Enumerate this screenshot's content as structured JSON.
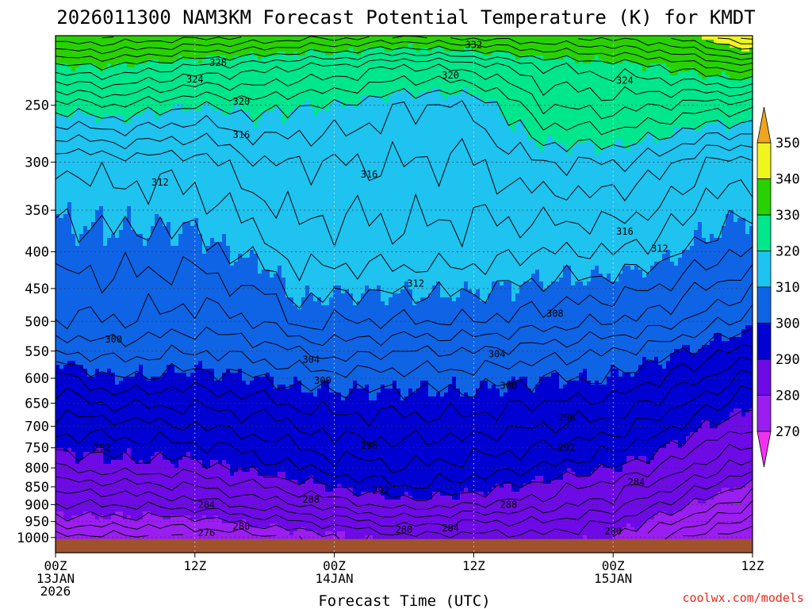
{
  "chart_data": {
    "type": "heatmap",
    "title": "2026011300 NAM3KM Forecast Potential Temperature (K) for KMDT",
    "xlabel": "Forecast Time (UTC)",
    "ylabel": "",
    "credit": "coolwx.com/models",
    "x_range_hours": [
      0,
      60
    ],
    "x_ticks": [
      {
        "hour": 0,
        "lines": [
          "00Z",
          "13JAN",
          "2026"
        ]
      },
      {
        "hour": 12,
        "lines": [
          "12Z"
        ]
      },
      {
        "hour": 24,
        "lines": [
          "00Z",
          "14JAN"
        ]
      },
      {
        "hour": 36,
        "lines": [
          "12Z"
        ]
      },
      {
        "hour": 48,
        "lines": [
          "00Z",
          "15JAN"
        ]
      },
      {
        "hour": 60,
        "lines": [
          "12Z"
        ]
      }
    ],
    "y_axis": {
      "units": "hPa",
      "log_scale": true,
      "top": 200,
      "bottom": 1050,
      "ticks": [
        250,
        300,
        350,
        400,
        450,
        500,
        550,
        600,
        650,
        700,
        750,
        800,
        850,
        900,
        950,
        1000
      ]
    },
    "colorbar": {
      "levels": [
        270,
        280,
        290,
        300,
        310,
        320,
        330,
        340,
        350
      ],
      "colors": [
        "#f032f0",
        "#9b1ef0",
        "#6e0ae6",
        "#0000d2",
        "#0f64e6",
        "#1ec3f0",
        "#00e68c",
        "#28d200",
        "#f0f51e",
        "#f0a51e"
      ]
    },
    "surface_pressure_hpa": 1005,
    "contour_interval_k": 2,
    "theta_profiles": [
      {
        "hour": 0,
        "levels_hpa": [
          1005,
          950,
          900,
          850,
          800,
          700,
          600,
          550,
          500,
          400,
          300,
          250,
          220,
          200
        ],
        "theta_k": [
          275,
          279,
          282,
          285,
          288,
          293,
          297,
          302,
          306,
          309,
          312,
          321,
          330,
          338
        ]
      },
      {
        "hour": 5,
        "levels_hpa": [
          1005,
          950,
          900,
          850,
          800,
          700,
          600,
          550,
          500,
          400,
          300,
          250,
          220,
          200
        ],
        "theta_k": [
          275,
          279,
          282,
          285,
          289,
          293,
          300,
          303,
          306,
          309,
          313,
          322,
          330,
          338
        ]
      },
      {
        "hour": 12,
        "levels_hpa": [
          1005,
          950,
          900,
          850,
          800,
          700,
          600,
          550,
          500,
          400,
          300,
          250,
          220,
          200
        ],
        "theta_k": [
          276,
          279,
          283,
          286,
          289,
          294,
          299,
          302,
          305,
          309,
          313,
          320,
          328,
          337
        ]
      },
      {
        "hour": 18,
        "levels_hpa": [
          1005,
          950,
          900,
          850,
          800,
          700,
          600,
          550,
          500,
          400,
          300,
          250,
          220,
          200
        ],
        "theta_k": [
          277,
          281,
          285,
          288,
          291,
          295,
          300,
          303,
          306,
          311,
          316,
          321,
          327,
          336
        ]
      },
      {
        "hour": 21,
        "levels_hpa": [
          1005,
          950,
          900,
          850,
          800,
          700,
          600,
          550,
          500,
          400,
          300,
          250,
          220,
          200
        ],
        "theta_k": [
          278,
          282,
          286,
          289,
          292,
          296,
          301,
          304,
          309,
          313,
          316,
          320,
          326,
          335
        ]
      },
      {
        "hour": 24,
        "levels_hpa": [
          1005,
          950,
          900,
          850,
          800,
          700,
          600,
          550,
          500,
          400,
          300,
          250,
          220,
          200
        ],
        "theta_k": [
          279,
          283,
          287,
          290,
          293,
          297,
          301,
          305,
          308,
          313,
          316,
          320,
          326,
          335
        ]
      },
      {
        "hour": 30,
        "levels_hpa": [
          1005,
          950,
          900,
          850,
          800,
          700,
          600,
          550,
          500,
          400,
          300,
          250,
          220,
          200
        ],
        "theta_k": [
          281,
          285,
          289,
          292,
          294,
          297,
          301,
          304,
          308,
          313,
          316,
          318,
          324,
          334
        ]
      },
      {
        "hour": 36,
        "levels_hpa": [
          1005,
          950,
          900,
          850,
          800,
          700,
          600,
          550,
          500,
          400,
          300,
          250,
          220,
          200
        ],
        "theta_k": [
          281,
          284,
          288,
          291,
          293,
          297,
          301,
          304,
          308,
          313,
          316,
          318,
          325,
          335
        ]
      },
      {
        "hour": 42,
        "levels_hpa": [
          1005,
          950,
          900,
          850,
          800,
          700,
          600,
          550,
          500,
          400,
          300,
          250,
          220,
          200
        ],
        "theta_k": [
          281,
          284,
          287,
          289,
          292,
          296,
          300,
          303,
          307,
          312,
          318,
          324,
          328,
          336
        ]
      },
      {
        "hour": 48,
        "levels_hpa": [
          1005,
          950,
          900,
          850,
          800,
          700,
          600,
          550,
          500,
          400,
          300,
          250,
          220,
          200
        ],
        "theta_k": [
          280,
          282,
          285,
          287,
          290,
          295,
          300,
          302,
          306,
          312,
          318,
          325,
          329,
          337
        ]
      },
      {
        "hour": 52,
        "levels_hpa": [
          1005,
          950,
          900,
          850,
          800,
          700,
          600,
          550,
          500,
          400,
          300,
          250,
          220,
          200
        ],
        "theta_k": [
          276,
          279,
          282,
          285,
          288,
          293,
          298,
          301,
          305,
          311,
          317,
          324,
          330,
          338
        ]
      },
      {
        "hour": 56,
        "levels_hpa": [
          1005,
          950,
          900,
          850,
          800,
          700,
          600,
          550,
          500,
          400,
          300,
          250,
          220,
          200
        ],
        "theta_k": [
          272,
          276,
          279,
          282,
          285,
          290,
          296,
          299,
          303,
          309,
          314,
          323,
          332,
          341
        ]
      },
      {
        "hour": 60,
        "levels_hpa": [
          1005,
          950,
          900,
          850,
          800,
          700,
          600,
          550,
          500,
          400,
          300,
          250,
          220,
          200
        ],
        "theta_k": [
          270,
          273,
          276,
          279,
          283,
          288,
          293,
          297,
          301,
          308,
          313,
          323,
          334,
          346
        ]
      }
    ],
    "contour_labels": [
      {
        "text": "332",
        "hour": 36.0,
        "hpa": 206
      },
      {
        "text": "328",
        "hour": 14.0,
        "hpa": 218
      },
      {
        "text": "324",
        "hour": 12.0,
        "hpa": 230
      },
      {
        "text": "324",
        "hour": 49.0,
        "hpa": 231
      },
      {
        "text": "320",
        "hour": 34.0,
        "hpa": 227
      },
      {
        "text": "320",
        "hour": 16.0,
        "hpa": 247
      },
      {
        "text": "316",
        "hour": 16.0,
        "hpa": 275
      },
      {
        "text": "316",
        "hour": 27.0,
        "hpa": 312
      },
      {
        "text": "316",
        "hour": 49.0,
        "hpa": 375
      },
      {
        "text": "312",
        "hour": 9.0,
        "hpa": 320
      },
      {
        "text": "312",
        "hour": 52.0,
        "hpa": 396
      },
      {
        "text": "312",
        "hour": 31.0,
        "hpa": 443
      },
      {
        "text": "308",
        "hour": 43.0,
        "hpa": 488
      },
      {
        "text": "304",
        "hour": 22.0,
        "hpa": 565
      },
      {
        "text": "304",
        "hour": 38.0,
        "hpa": 555
      },
      {
        "text": "300",
        "hour": 5.0,
        "hpa": 530
      },
      {
        "text": "300",
        "hour": 23.0,
        "hpa": 605
      },
      {
        "text": "300",
        "hour": 39.0,
        "hpa": 615
      },
      {
        "text": "296",
        "hour": 44.0,
        "hpa": 680
      },
      {
        "text": "296",
        "hour": 27.0,
        "hpa": 745
      },
      {
        "text": "292",
        "hour": 4.0,
        "hpa": 750
      },
      {
        "text": "292",
        "hour": 44.0,
        "hpa": 750
      },
      {
        "text": "292",
        "hour": 28.0,
        "hpa": 860
      },
      {
        "text": "288",
        "hour": 22.0,
        "hpa": 885
      },
      {
        "text": "288",
        "hour": 39.0,
        "hpa": 900
      },
      {
        "text": "284",
        "hour": 13.0,
        "hpa": 900
      },
      {
        "text": "284",
        "hour": 50.0,
        "hpa": 837
      },
      {
        "text": "284",
        "hour": 34.0,
        "hpa": 970
      },
      {
        "text": "280",
        "hour": 16.0,
        "hpa": 965
      },
      {
        "text": "280",
        "hour": 30.0,
        "hpa": 975
      },
      {
        "text": "280",
        "hour": 48.0,
        "hpa": 980
      },
      {
        "text": "276",
        "hour": 13.0,
        "hpa": 985
      }
    ]
  }
}
